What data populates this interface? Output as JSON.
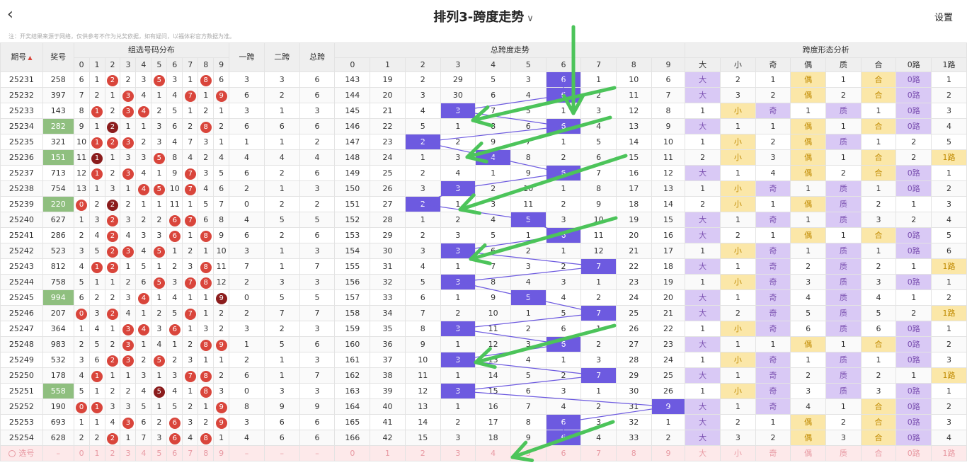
{
  "header": {
    "title": "排列3-跨度走势",
    "settings": "设置"
  },
  "notice": "注：开奖结果来源于网络，仅供参考不作为兑奖依据，如有疑问，以福体彩官方数据为准。",
  "groups": {
    "issue": "期号",
    "award": "奖号",
    "dist": "组选号码分布",
    "span1": "一跨",
    "span2": "二跨",
    "total": "总跨",
    "trend": "总跨度走势",
    "shape": "跨度形态分析"
  },
  "digits": [
    "0",
    "1",
    "2",
    "3",
    "4",
    "5",
    "6",
    "7",
    "8",
    "9"
  ],
  "shape_headers": [
    "大",
    "小",
    "奇",
    "偶",
    "质",
    "合",
    "0路",
    "1路"
  ],
  "rows": [
    {
      "issue": "25231",
      "award": "258",
      "d": [
        "6",
        "1",
        "2",
        "2",
        "3",
        "5",
        "3",
        "1",
        "8",
        "6"
      ],
      "s1": "3",
      "s2": "3",
      "t": "6",
      "tr": [
        "143",
        "19",
        "2",
        "29",
        "5",
        "3",
        "6",
        "1",
        "10",
        "6"
      ],
      "sh": [
        "大",
        "2",
        "1",
        "偶",
        "1",
        "合",
        "0路",
        "1"
      ]
    },
    {
      "issue": "25232",
      "award": "397",
      "d": [
        "7",
        "2",
        "1",
        "3",
        "4",
        "1",
        "4",
        "7",
        "1",
        "9"
      ],
      "s1": "6",
      "s2": "2",
      "t": "6",
      "tr": [
        "144",
        "20",
        "3",
        "30",
        "6",
        "4",
        "6",
        "2",
        "11",
        "7"
      ],
      "sh": [
        "大",
        "3",
        "2",
        "偶",
        "2",
        "合",
        "0路",
        "2"
      ]
    },
    {
      "issue": "25233",
      "award": "143",
      "d": [
        "8",
        "1",
        "2",
        "3",
        "4",
        "2",
        "5",
        "1",
        "2",
        "1"
      ],
      "s1": "3",
      "s2": "1",
      "t": "3",
      "tr": [
        "145",
        "21",
        "4",
        "3",
        "7",
        "5",
        "1",
        "3",
        "12",
        "8"
      ],
      "sh": [
        "1",
        "小",
        "奇",
        "1",
        "质",
        "1",
        "0路",
        "3"
      ]
    },
    {
      "issue": "25234",
      "award": "282",
      "d": [
        "9",
        "1",
        "2",
        "1",
        "1",
        "3",
        "6",
        "2",
        "8",
        "2"
      ],
      "s1": "6",
      "s2": "6",
      "t": "6",
      "tr": [
        "146",
        "22",
        "5",
        "1",
        "8",
        "6",
        "6",
        "4",
        "13",
        "9"
      ],
      "sh": [
        "大",
        "1",
        "1",
        "偶",
        "1",
        "合",
        "0路",
        "4"
      ]
    },
    {
      "issue": "25235",
      "award": "321",
      "d": [
        "10",
        "1",
        "2",
        "3",
        "2",
        "3",
        "4",
        "7",
        "3",
        "1"
      ],
      "s1": "1",
      "s2": "1",
      "t": "2",
      "tr": [
        "147",
        "23",
        "2",
        "2",
        "9",
        "7",
        "1",
        "5",
        "14",
        "10"
      ],
      "sh": [
        "1",
        "小",
        "2",
        "偶",
        "质",
        "1",
        "2",
        "5"
      ]
    },
    {
      "issue": "25236",
      "award": "151",
      "d": [
        "11",
        "1",
        "1",
        "3",
        "3",
        "5",
        "8",
        "4",
        "2",
        "4"
      ],
      "s1": "4",
      "s2": "4",
      "t": "4",
      "tr": [
        "148",
        "24",
        "1",
        "3",
        "4",
        "8",
        "2",
        "6",
        "15",
        "11"
      ],
      "sh": [
        "2",
        "小",
        "3",
        "偶",
        "1",
        "合",
        "2",
        "1路"
      ]
    },
    {
      "issue": "25237",
      "award": "713",
      "d": [
        "12",
        "1",
        "2",
        "3",
        "4",
        "1",
        "9",
        "7",
        "3",
        "5"
      ],
      "s1": "6",
      "s2": "2",
      "t": "6",
      "tr": [
        "149",
        "25",
        "2",
        "4",
        "1",
        "9",
        "6",
        "7",
        "16",
        "12"
      ],
      "sh": [
        "大",
        "1",
        "4",
        "偶",
        "2",
        "合",
        "0路",
        "1"
      ]
    },
    {
      "issue": "25238",
      "award": "754",
      "d": [
        "13",
        "1",
        "3",
        "1",
        "4",
        "5",
        "10",
        "7",
        "4",
        "6"
      ],
      "s1": "2",
      "s2": "1",
      "t": "3",
      "tr": [
        "150",
        "26",
        "3",
        "3",
        "2",
        "10",
        "1",
        "8",
        "17",
        "13"
      ],
      "sh": [
        "1",
        "小",
        "奇",
        "1",
        "质",
        "1",
        "0路",
        "2"
      ]
    },
    {
      "issue": "25239",
      "award": "220",
      "d": [
        "0",
        "2",
        "2",
        "2",
        "1",
        "1",
        "11",
        "1",
        "5",
        "7"
      ],
      "s1": "0",
      "s2": "2",
      "t": "2",
      "tr": [
        "151",
        "27",
        "2",
        "1",
        "3",
        "11",
        "2",
        "9",
        "18",
        "14"
      ],
      "sh": [
        "2",
        "小",
        "1",
        "偶",
        "质",
        "2",
        "1",
        "3"
      ]
    },
    {
      "issue": "25240",
      "award": "627",
      "d": [
        "1",
        "3",
        "2",
        "3",
        "2",
        "2",
        "6",
        "7",
        "6",
        "8"
      ],
      "s1": "4",
      "s2": "5",
      "t": "5",
      "tr": [
        "152",
        "28",
        "1",
        "2",
        "4",
        "5",
        "3",
        "10",
        "19",
        "15"
      ],
      "sh": [
        "大",
        "1",
        "奇",
        "1",
        "质",
        "3",
        "2",
        "4"
      ]
    },
    {
      "issue": "25241",
      "award": "286",
      "d": [
        "2",
        "4",
        "2",
        "4",
        "3",
        "3",
        "6",
        "1",
        "8",
        "9"
      ],
      "s1": "6",
      "s2": "2",
      "t": "6",
      "tr": [
        "153",
        "29",
        "2",
        "3",
        "5",
        "1",
        "6",
        "11",
        "20",
        "16"
      ],
      "sh": [
        "大",
        "2",
        "1",
        "偶",
        "1",
        "合",
        "0路",
        "5"
      ]
    },
    {
      "issue": "25242",
      "award": "523",
      "d": [
        "3",
        "5",
        "2",
        "3",
        "4",
        "5",
        "1",
        "2",
        "1",
        "10"
      ],
      "s1": "3",
      "s2": "1",
      "t": "3",
      "tr": [
        "154",
        "30",
        "3",
        "3",
        "6",
        "2",
        "1",
        "12",
        "21",
        "17"
      ],
      "sh": [
        "1",
        "小",
        "奇",
        "1",
        "质",
        "1",
        "0路",
        "6"
      ]
    },
    {
      "issue": "25243",
      "award": "812",
      "d": [
        "4",
        "1",
        "2",
        "1",
        "5",
        "1",
        "2",
        "3",
        "8",
        "11"
      ],
      "s1": "7",
      "s2": "1",
      "t": "7",
      "tr": [
        "155",
        "31",
        "4",
        "1",
        "7",
        "3",
        "2",
        "7",
        "22",
        "18"
      ],
      "sh": [
        "大",
        "1",
        "奇",
        "2",
        "质",
        "2",
        "1",
        "1路"
      ]
    },
    {
      "issue": "25244",
      "award": "758",
      "d": [
        "5",
        "1",
        "1",
        "2",
        "6",
        "5",
        "3",
        "7",
        "8",
        "12"
      ],
      "s1": "2",
      "s2": "3",
      "t": "3",
      "tr": [
        "156",
        "32",
        "5",
        "3",
        "8",
        "4",
        "3",
        "1",
        "23",
        "19"
      ],
      "sh": [
        "1",
        "小",
        "奇",
        "3",
        "质",
        "3",
        "0路",
        "1"
      ]
    },
    {
      "issue": "25245",
      "award": "994",
      "d": [
        "6",
        "2",
        "2",
        "3",
        "4",
        "1",
        "4",
        "1",
        "1",
        "9"
      ],
      "s1": "0",
      "s2": "5",
      "t": "5",
      "tr": [
        "157",
        "33",
        "6",
        "1",
        "9",
        "5",
        "4",
        "2",
        "24",
        "20"
      ],
      "sh": [
        "大",
        "1",
        "奇",
        "4",
        "质",
        "4",
        "1",
        "2"
      ]
    },
    {
      "issue": "25246",
      "award": "207",
      "d": [
        "0",
        "3",
        "2",
        "4",
        "1",
        "2",
        "5",
        "7",
        "1",
        "2"
      ],
      "s1": "2",
      "s2": "7",
      "t": "7",
      "tr": [
        "158",
        "34",
        "7",
        "2",
        "10",
        "1",
        "5",
        "7",
        "25",
        "21"
      ],
      "sh": [
        "大",
        "2",
        "奇",
        "5",
        "质",
        "5",
        "2",
        "1路"
      ]
    },
    {
      "issue": "25247",
      "award": "364",
      "d": [
        "1",
        "4",
        "1",
        "3",
        "4",
        "3",
        "6",
        "1",
        "3",
        "2"
      ],
      "s1": "3",
      "s2": "2",
      "t": "3",
      "tr": [
        "159",
        "35",
        "8",
        "3",
        "11",
        "2",
        "6",
        "1",
        "26",
        "22"
      ],
      "sh": [
        "1",
        "小",
        "奇",
        "6",
        "质",
        "6",
        "0路",
        "1"
      ]
    },
    {
      "issue": "25248",
      "award": "983",
      "d": [
        "2",
        "5",
        "2",
        "3",
        "1",
        "4",
        "1",
        "2",
        "8",
        "9"
      ],
      "s1": "1",
      "s2": "5",
      "t": "6",
      "tr": [
        "160",
        "36",
        "9",
        "1",
        "12",
        "3",
        "6",
        "2",
        "27",
        "23"
      ],
      "sh": [
        "大",
        "1",
        "1",
        "偶",
        "1",
        "合",
        "0路",
        "2"
      ]
    },
    {
      "issue": "25249",
      "award": "532",
      "d": [
        "3",
        "6",
        "2",
        "3",
        "2",
        "5",
        "2",
        "3",
        "1",
        "1"
      ],
      "s1": "2",
      "s2": "1",
      "t": "3",
      "tr": [
        "161",
        "37",
        "10",
        "3",
        "13",
        "4",
        "1",
        "3",
        "28",
        "24"
      ],
      "sh": [
        "1",
        "小",
        "奇",
        "1",
        "质",
        "1",
        "0路",
        "3"
      ]
    },
    {
      "issue": "25250",
      "award": "178",
      "d": [
        "4",
        "1",
        "1",
        "1",
        "3",
        "1",
        "3",
        "7",
        "8",
        "2"
      ],
      "s1": "6",
      "s2": "1",
      "t": "7",
      "tr": [
        "162",
        "38",
        "11",
        "1",
        "14",
        "5",
        "2",
        "7",
        "29",
        "25"
      ],
      "sh": [
        "大",
        "1",
        "奇",
        "2",
        "质",
        "2",
        "1",
        "1路"
      ]
    },
    {
      "issue": "25251",
      "award": "558",
      "d": [
        "5",
        "1",
        "2",
        "2",
        "4",
        "5",
        "4",
        "1",
        "8",
        "3"
      ],
      "s1": "0",
      "s2": "3",
      "t": "3",
      "tr": [
        "163",
        "39",
        "12",
        "3",
        "15",
        "6",
        "3",
        "1",
        "30",
        "26"
      ],
      "sh": [
        "1",
        "小",
        "奇",
        "3",
        "质",
        "3",
        "0路",
        "1"
      ]
    },
    {
      "issue": "25252",
      "award": "190",
      "d": [
        "0",
        "1",
        "3",
        "3",
        "5",
        "1",
        "5",
        "2",
        "1",
        "9"
      ],
      "s1": "8",
      "s2": "9",
      "t": "9",
      "tr": [
        "164",
        "40",
        "13",
        "1",
        "16",
        "7",
        "4",
        "2",
        "31",
        "9"
      ],
      "sh": [
        "大",
        "1",
        "奇",
        "4",
        "1",
        "合",
        "0路",
        "2"
      ]
    },
    {
      "issue": "25253",
      "award": "693",
      "d": [
        "1",
        "1",
        "4",
        "3",
        "6",
        "2",
        "6",
        "3",
        "2",
        "9"
      ],
      "s1": "3",
      "s2": "6",
      "t": "6",
      "tr": [
        "165",
        "41",
        "14",
        "2",
        "17",
        "8",
        "6",
        "3",
        "32",
        "1"
      ],
      "sh": [
        "大",
        "2",
        "1",
        "偶",
        "2",
        "合",
        "0路",
        "3"
      ]
    },
    {
      "issue": "25254",
      "award": "628",
      "d": [
        "2",
        "2",
        "2",
        "1",
        "7",
        "3",
        "6",
        "4",
        "8",
        "1"
      ],
      "s1": "4",
      "s2": "6",
      "t": "6",
      "tr": [
        "166",
        "42",
        "15",
        "3",
        "18",
        "9",
        "6",
        "4",
        "33",
        "2"
      ],
      "sh": [
        "大",
        "3",
        "2",
        "偶",
        "3",
        "合",
        "0路",
        "4"
      ]
    }
  ],
  "select_row": {
    "label": "选号",
    "dash": "–",
    "shape": [
      "大",
      "小",
      "奇",
      "偶",
      "质",
      "合",
      "0路",
      "1路"
    ]
  }
}
